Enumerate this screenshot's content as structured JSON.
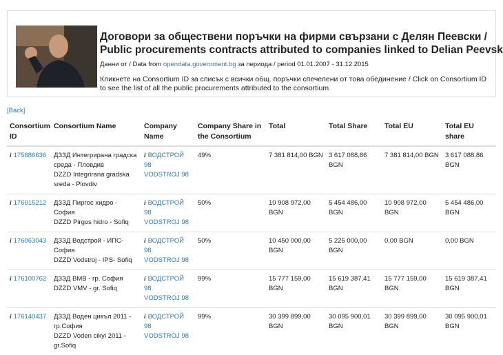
{
  "header": {
    "title": [
      "Договори за обществени поръчки на фирми свързани с Делян Пеевски /",
      "Public procurements contracts attributed to companies linked to Delian Peevski"
    ],
    "source": {
      "before": "Данни от / Data from",
      "link": "opendata.government.bg",
      "after": "за периода / period 01.01.2007 - 31.12.2015"
    },
    "description": "Кликнете на Consortium ID за списък с всички общ. поръчки спечелени от това обединение / Click on Consortium ID to see the list of all the public procurements attributed to the consortium"
  },
  "back": "[Back]",
  "table": {
    "columns": [
      "Consortium ID",
      "Consortium Name",
      "Company Name",
      "Company Share in the Consortium",
      "Total",
      "Total Share",
      "Total EU",
      "Total EU share"
    ],
    "rows": [
      {
        "id": "175886636",
        "name": [
          "ДЗЗД Интегрирана градска среда - Пловдив",
          "DZZD Integrirana gradska sreda - Plovdiv"
        ],
        "company": [
          "ВОДСТРОЙ 98",
          "VODSTROJ 98"
        ],
        "share": "49%",
        "total": "7 381 814,00 BGN",
        "total_share": "3 617 088,86 BGN",
        "total_eu": "7 381 814,00 BGN",
        "total_eu_share": "3 617 088,86 BGN"
      },
      {
        "id": "176015212",
        "name": [
          "ДЗЗД Пиргос хидро - София",
          "DZZD Pirgos hidro - Sofiq"
        ],
        "company": [
          "ВОДСТРОЙ 98",
          "VODSTROJ 98"
        ],
        "share": "50%",
        "total": "10 908 972,00 BGN",
        "total_share": "5 454 486,00 BGN",
        "total_eu": "10 908 972,00 BGN",
        "total_eu_share": "5 454 486,00 BGN"
      },
      {
        "id": "176063043",
        "name": [
          "ДЗЗД Водстрой - ИПС- София",
          "DZZD Vodstroj - IPS- Sofiq"
        ],
        "company": [
          "ВОДСТРОЙ 98",
          "VODSTROJ 98"
        ],
        "share": "50%",
        "total": "10 450 000,00 BGN",
        "total_share": "5 225 000,00 BGN",
        "total_eu": "0,00 BGN",
        "total_eu_share": "0,00 BGN"
      },
      {
        "id": "176100762",
        "name": [
          "ДЗЗД ВМВ - гр. София",
          "DZZD VMV - gr. Sofiq"
        ],
        "company": [
          "ВОДСТРОЙ 98",
          "VODSTROJ 98"
        ],
        "share": "99%",
        "total": "15 777 159,00 BGN",
        "total_share": "15 619 387,41 BGN",
        "total_eu": "15 777 159,00 BGN",
        "total_eu_share": "15 619 387,41 BGN"
      },
      {
        "id": "176140437",
        "name": [
          "ДЗЗД Воден цикъл 2011 - гр.София",
          "DZZD Voden cikyl 2011 - gr.Sofiq"
        ],
        "company": [
          "ВОДСТРОЙ 98",
          "VODSTROJ 98"
        ],
        "share": "99%",
        "total": "30 399 899,00 BGN",
        "total_share": "30 095 900,01 BGN",
        "total_eu": "30 399 899,00 BGN",
        "total_eu_share": "30 095 900,01 BGN"
      }
    ]
  }
}
